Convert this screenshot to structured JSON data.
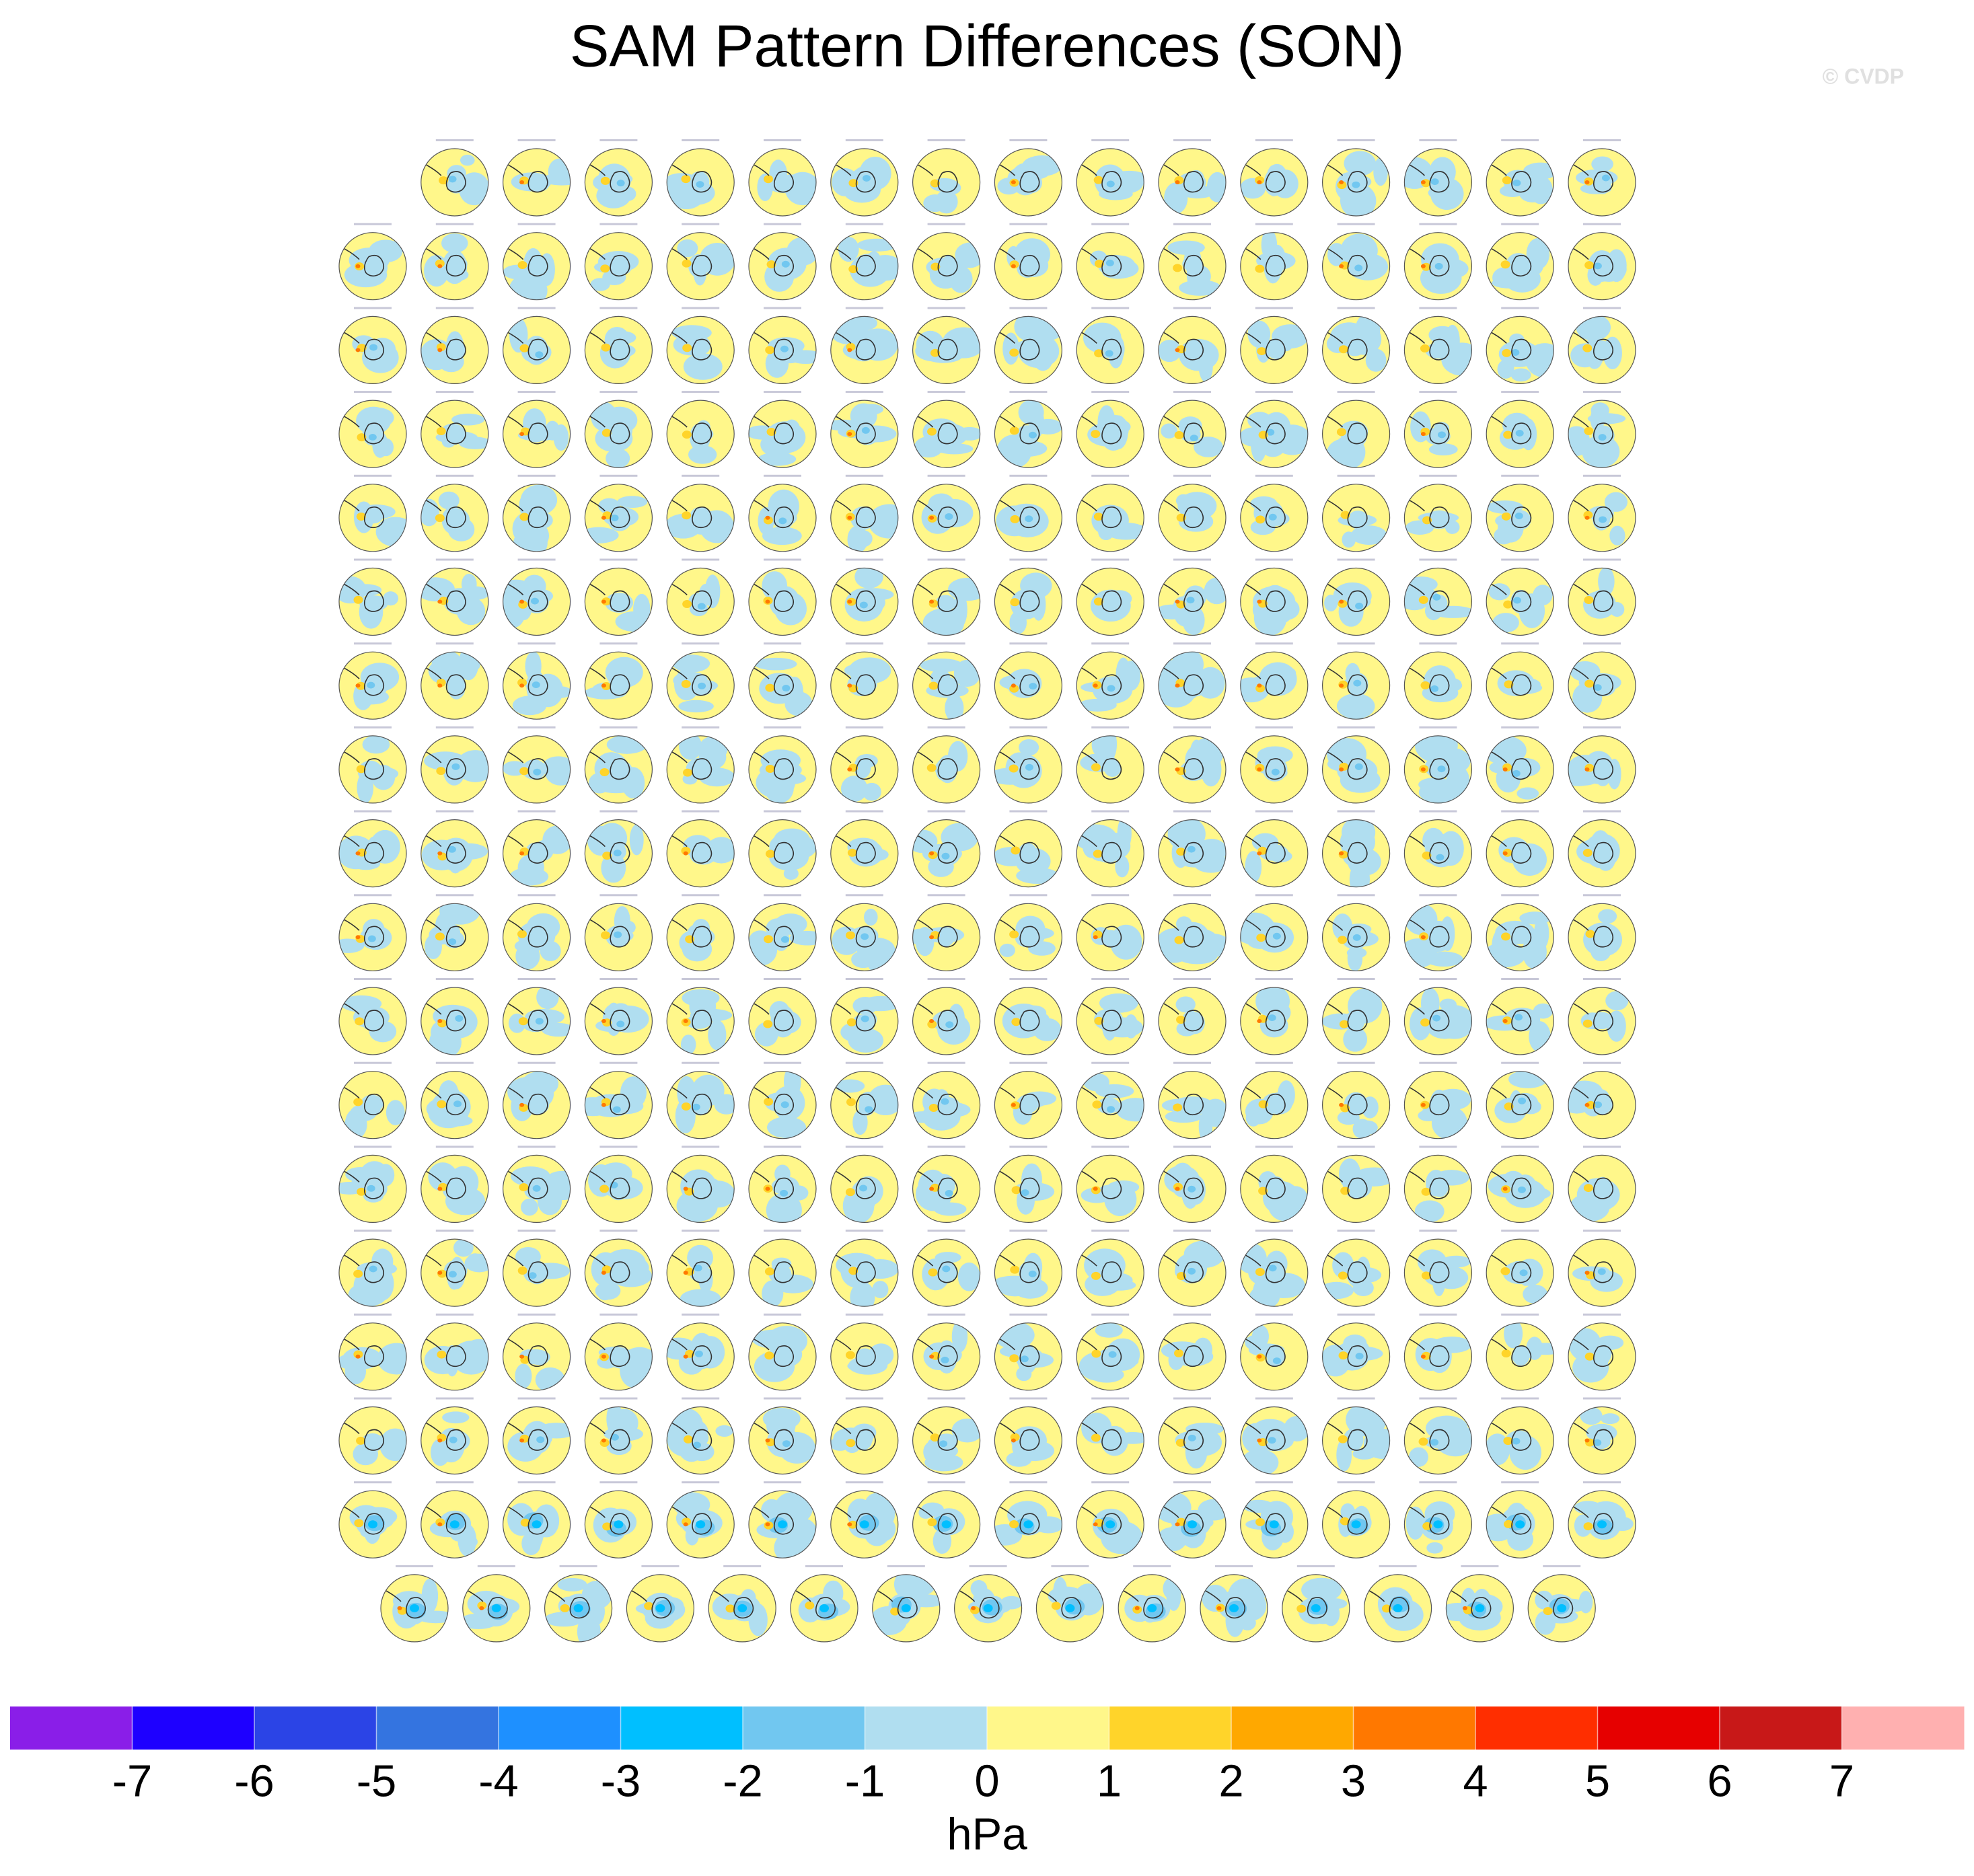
{
  "chart_data": {
    "type": "colorbar",
    "title": "SAM Pattern Differences (SON)",
    "watermark": "© CVDP",
    "xlabel": "hPa",
    "xlim": [
      -8,
      8
    ],
    "xticks": [
      -7,
      -6,
      -5,
      -4,
      -3,
      -2,
      -1,
      0,
      1,
      2,
      3,
      4,
      5,
      6,
      7
    ],
    "colors": [
      "#8a1ee8",
      "#1e00ff",
      "#2b44e6",
      "#3474e0",
      "#1e90ff",
      "#00bfff",
      "#71c7f0",
      "#b0def0",
      "#fff78a",
      "#ffd42a",
      "#ffa800",
      "#ff7800",
      "#ff2e00",
      "#e60000",
      "#c81818",
      "#ffb0b0"
    ]
  }
}
